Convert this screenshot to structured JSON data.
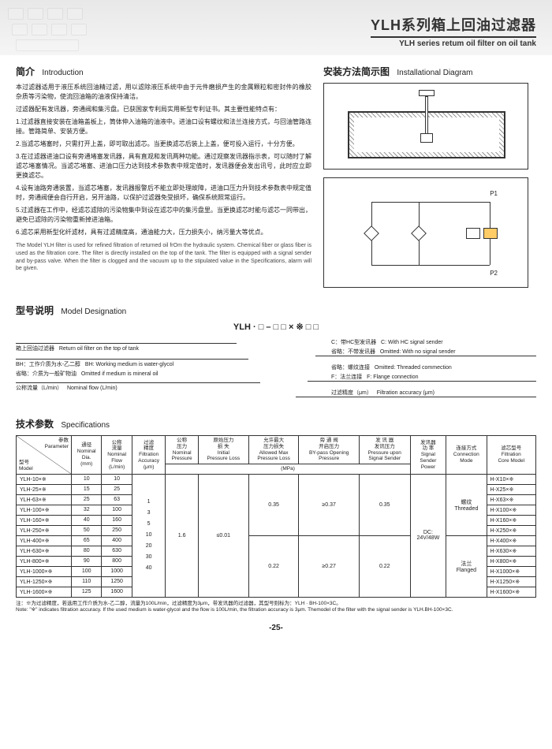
{
  "header": {
    "title_cn": "YLH系列箱上回油过滤器",
    "title_en": "YLH series retum oil filter on oil tank"
  },
  "intro": {
    "title_cn": "简介",
    "title_en": "Introduction",
    "p1": "本过滤器适用于液压系统回油精过滤，用以滤除液压系统中由于元件磨损产生的金属颗粒和密封件的橡胶杂质等污染物，使流回油箱的油液保持清洁。",
    "p2": "过滤器配有发讯器，旁通阀和集污盘。已获国家专利局实用新型专利证书。其主要性能特点有：",
    "p3": "1.过滤器直接安装在油箱盖板上，筒体伸入油箱的油液中。进油口设有螺纹和法兰连接方式，与回油管路连接。管路简单、安装方便。",
    "p4": "2.当滤芯堵塞时，只需打开上盖，即可取出滤芯。当更换滤芯后装上上盖，便可投入运行，十分方便。",
    "p5": "3.在过滤器进油口设有旁通堵塞发讯器，具有直观和发讯两种功能。通过观察发讯器指示表，可以随时了解滤芯堵塞情况。当滤芯堵塞、进油口压力达到技术参数表中规定值时，发讯器便会发出讯号，此时应立即更换滤芯。",
    "p6": "4.设有油路旁通装置，当滤芯堵塞，发讯器报警后不能立即处理故障，进油口压力升到技术参数表中规定值时，旁通阀便会自行开启，另开油路，以保护过滤器免受损坏，确保系统照常运行。",
    "p7": "5.过滤器在工作中，经滤芯滤除的污染物集中到设在滤芯中的集污盘里。当更换滤芯时能与滤芯一同带出，避免已滤除的污染物重新掉进油箱。",
    "p8": "6.滤芯采用新型化纤滤材，具有过滤精度高，通油能力大，压力损失小，纳污量大等优点。",
    "en": "The Model YLH filter is used for refined filtration of returned oil frOm the hydraulic system. Chemical fiber or glass fiber is used as the filtration core. The filter is directly installed on the top of the tank. The filter is equipped with a signal sender and by-pass valve. When the filter is clogged and the vacuum up to the stipulated value in the Specifications, alarm will be given."
  },
  "install": {
    "title_cn": "安装方法简示图",
    "title_en": "Installational Diagram",
    "p1_label": "P1",
    "p2_label": "P2"
  },
  "model": {
    "title_cn": "型号说明",
    "title_en": "Model Designation",
    "formula": "YLH · □ – □ □ × ※ □ □",
    "r1_cn": "箱上回油过滤器",
    "r1_en": "Return oil filter on the top of tank",
    "r2_cn": "BH：工作介质为水-乙二醇",
    "r2_en": "BH: Working medium is water-glycol",
    "r3_cn": "省略：介质为一般矿物油",
    "r3_en": "Omitted if medium is mineral oil",
    "r4_cn": "公称流量（L/min）",
    "r4_en": "Nominal flow (L/min)",
    "c1_cn": "C：带HC型发讯器",
    "c1_en": "C: With HC signal sender",
    "c2_cn": "省略：不带发讯器",
    "c2_en": "Omitted: With no signal sender",
    "c3_cn": "省略：螺纹连接",
    "c3_en": "Omitted: Threaded commection",
    "c4_cn": "F：法兰连接",
    "c4_en": "F: Flange connection",
    "c5_cn": "过滤精度（μm）",
    "c5_en": "Filtration accuracy (μm)"
  },
  "spec": {
    "title_cn": "技术参数",
    "title_en": "Specifications",
    "headers": {
      "param": "参数\nParameter",
      "model": "型号\nModel",
      "dia": "通径\nNominal\nDia.\n(mm)",
      "flow": "公称\n流量\nNominal\nFlow\n(L/min)",
      "acc": "过滤\n精度\nFiltration\nAccuracy\n(μm)",
      "press": "公称\n压力\nNominal\nPressure",
      "loss": "原始压力\n损  失\nInitial\nPressure Loss",
      "maxloss": "允许最大\n压力损失\nAllowed Max\nPressure Loss",
      "bypass": "旁 通 阀\n开启压力\nBY-pass Opening\nPressure",
      "signal": "发 讯 器\n发讯压力\nPressure upon\nSignal Sender",
      "power": "发讯器\n功  率\nSignal\nSender\nPower",
      "conn": "连接方式\nConnection\nMode",
      "core": "滤芯型号\nFiltration\nCore Model",
      "mpa": "(MPa)"
    },
    "acc_values": "1\n3\n5\n10\n20\n30\n40",
    "nom_press": "1.6",
    "init_loss": "≤0.01",
    "max_loss1": "0.35",
    "max_loss2": "0.22",
    "bypass1": "≥0.37",
    "bypass2": "≥0.27",
    "sig1": "0.35",
    "sig2": "0.22",
    "power": "DC:\n24V/48W",
    "conn1": "螺纹\nThreaded",
    "conn2": "法兰\nFlanged",
    "rows": [
      {
        "m": "YLH-10×※",
        "d": "10",
        "f": "10",
        "c": "H-X10×※"
      },
      {
        "m": "YLH-25×※",
        "d": "15",
        "f": "25",
        "c": "H-X25×※"
      },
      {
        "m": "YLH-63×※",
        "d": "25",
        "f": "63",
        "c": "H-X63×※"
      },
      {
        "m": "YLH-100×※",
        "d": "32",
        "f": "100",
        "c": "H-X100×※"
      },
      {
        "m": "YLH-160×※",
        "d": "40",
        "f": "160",
        "c": "H-X160×※"
      },
      {
        "m": "YLH-250×※",
        "d": "50",
        "f": "250",
        "c": "H-X250×※"
      },
      {
        "m": "YLH-400×※",
        "d": "65",
        "f": "400",
        "c": "H-X400×※"
      },
      {
        "m": "YLH-630×※",
        "d": "80",
        "f": "630",
        "c": "H-X630×※"
      },
      {
        "m": "YLH-800×※",
        "d": "90",
        "f": "800",
        "c": "H-X800×※"
      },
      {
        "m": "YLH-1000×※",
        "d": "100",
        "f": "1000",
        "c": "H-X1000×※"
      },
      {
        "m": "YLH-1250×※",
        "d": "110",
        "f": "1250",
        "c": "H-X1250×※"
      },
      {
        "m": "YLH-1600×※",
        "d": "125",
        "f": "1600",
        "c": "H-X1600×※"
      }
    ]
  },
  "footnote": {
    "cn": "注：※为过滤精度，若选用工作介质为水-乙二醇，流量为100L/min，过滤精度为3μm，带发讯器的过滤器，其型号则标为：YLH · BH-100×3C。",
    "en": "Note: \"※\" indicates filtration accuracy. If the used medium is water-glycol and the flow is 100L/min, the filtration accuracy is 3μm. Themodel of the filter with the signal sender is YLH.BH-100×3C."
  },
  "page": "-25-"
}
